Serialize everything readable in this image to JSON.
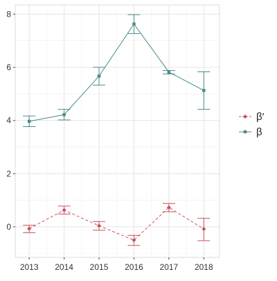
{
  "chart_data": {
    "type": "line",
    "x": [
      2013,
      2014,
      2015,
      2016,
      2017,
      2018
    ],
    "xlim": [
      2012.6,
      2018.45
    ],
    "ylim": [
      -1.15,
      8.35
    ],
    "y_ticks": [
      0,
      2,
      4,
      6,
      8
    ],
    "x_tick_labels": [
      "2013",
      "2014",
      "2015",
      "2016",
      "2017",
      "2018"
    ],
    "y_tick_labels": [
      "0",
      "2",
      "4",
      "6",
      "8"
    ],
    "grid": true,
    "error_bars": true,
    "legend_position": "right",
    "series": [
      {
        "name": "β",
        "color": "#4a8a8a",
        "marker": "square",
        "line_style": "solid",
        "values": [
          3.97,
          4.22,
          5.67,
          7.63,
          5.82,
          5.13
        ],
        "lower": [
          3.77,
          4.02,
          5.33,
          7.27,
          5.75,
          4.42
        ],
        "upper": [
          4.17,
          4.42,
          6.0,
          7.98,
          5.88,
          5.83
        ]
      },
      {
        "name": "β′",
        "color": "#c9505a",
        "marker": "diamond",
        "line_style": "dashed",
        "values": [
          -0.07,
          0.63,
          0.04,
          -0.5,
          0.73,
          -0.08
        ],
        "lower": [
          -0.22,
          0.48,
          -0.13,
          -0.7,
          0.57,
          -0.52
        ],
        "upper": [
          0.06,
          0.78,
          0.2,
          -0.32,
          0.88,
          0.32
        ]
      }
    ]
  }
}
